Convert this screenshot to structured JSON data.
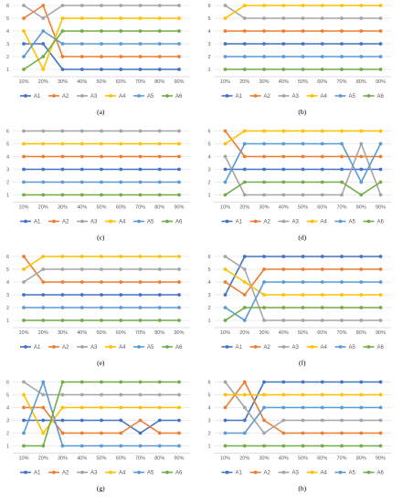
{
  "chart_data": [
    {
      "panel": "(a)",
      "type": "line",
      "x": [
        "10%",
        "20%",
        "30%",
        "40%",
        "50%",
        "60%",
        "70%",
        "80%",
        "90%"
      ],
      "ylim": [
        0,
        6
      ],
      "yticks": [
        "1",
        "2",
        "3",
        "4",
        "5",
        "6"
      ],
      "grid": true,
      "legend": "bottom",
      "series": [
        {
          "name": "A1",
          "color": "#4472C4",
          "values": [
            3,
            3,
            1,
            1,
            1,
            1,
            1,
            1,
            1
          ]
        },
        {
          "name": "A2",
          "color": "#ED7D31",
          "values": [
            5,
            6,
            2,
            2,
            2,
            2,
            2,
            2,
            2
          ]
        },
        {
          "name": "A3",
          "color": "#A5A5A5",
          "values": [
            6,
            5,
            6,
            6,
            6,
            6,
            6,
            6,
            6
          ]
        },
        {
          "name": "A4",
          "color": "#FFC000",
          "values": [
            4,
            1,
            5,
            5,
            5,
            5,
            5,
            5,
            5
          ]
        },
        {
          "name": "A5",
          "color": "#5B9BD5",
          "values": [
            2,
            4,
            3,
            3,
            3,
            3,
            3,
            3,
            3
          ]
        },
        {
          "name": "A6",
          "color": "#70AD47",
          "values": [
            1,
            2,
            4,
            4,
            4,
            4,
            4,
            4,
            4
          ]
        }
      ]
    },
    {
      "panel": "(b)",
      "type": "line",
      "x": [
        "10%",
        "20%",
        "30%",
        "40%",
        "50%",
        "60%",
        "70%",
        "80%",
        "90%"
      ],
      "ylim": [
        0,
        6
      ],
      "yticks": [
        "1",
        "2",
        "3",
        "4",
        "5",
        "6"
      ],
      "grid": true,
      "legend": "bottom",
      "series": [
        {
          "name": "A1",
          "color": "#4472C4",
          "values": [
            3,
            3,
            3,
            3,
            3,
            3,
            3,
            3,
            3
          ]
        },
        {
          "name": "A2",
          "color": "#ED7D31",
          "values": [
            4,
            4,
            4,
            4,
            4,
            4,
            4,
            4,
            4
          ]
        },
        {
          "name": "A3",
          "color": "#A5A5A5",
          "values": [
            6,
            5,
            5,
            5,
            5,
            5,
            5,
            5,
            5
          ]
        },
        {
          "name": "A4",
          "color": "#FFC000",
          "values": [
            5,
            6,
            6,
            6,
            6,
            6,
            6,
            6,
            6
          ]
        },
        {
          "name": "A5",
          "color": "#5B9BD5",
          "values": [
            2,
            2,
            2,
            2,
            2,
            2,
            2,
            2,
            2
          ]
        },
        {
          "name": "A6",
          "color": "#70AD47",
          "values": [
            1,
            1,
            1,
            1,
            1,
            1,
            1,
            1,
            1
          ]
        }
      ]
    },
    {
      "panel": "(c)",
      "type": "line",
      "x": [
        "10%",
        "20%",
        "30%",
        "40%",
        "50%",
        "60%",
        "70%",
        "80%",
        "90%"
      ],
      "ylim": [
        0,
        6
      ],
      "yticks": [
        "1",
        "2",
        "3",
        "4",
        "5",
        "6"
      ],
      "grid": true,
      "legend": "bottom",
      "series": [
        {
          "name": "A1",
          "color": "#4472C4",
          "values": [
            3,
            3,
            3,
            3,
            3,
            3,
            3,
            3,
            3
          ]
        },
        {
          "name": "A2",
          "color": "#ED7D31",
          "values": [
            4,
            4,
            4,
            4,
            4,
            4,
            4,
            4,
            4
          ]
        },
        {
          "name": "A3",
          "color": "#A5A5A5",
          "values": [
            6,
            6,
            6,
            6,
            6,
            6,
            6,
            6,
            6
          ]
        },
        {
          "name": "A4",
          "color": "#FFC000",
          "values": [
            5,
            5,
            5,
            5,
            5,
            5,
            5,
            5,
            5
          ]
        },
        {
          "name": "A5",
          "color": "#5B9BD5",
          "values": [
            2,
            2,
            2,
            2,
            2,
            2,
            2,
            2,
            2
          ]
        },
        {
          "name": "A6",
          "color": "#70AD47",
          "values": [
            1,
            1,
            1,
            1,
            1,
            1,
            1,
            1,
            1
          ]
        }
      ]
    },
    {
      "panel": "(d)",
      "type": "line",
      "x": [
        "10%",
        "20%",
        "30%",
        "40%",
        "50%",
        "60%",
        "70%",
        "80%",
        "90%"
      ],
      "ylim": [
        0,
        6
      ],
      "yticks": [
        "1",
        "2",
        "3",
        "4",
        "5",
        "6"
      ],
      "grid": true,
      "legend": "bottom",
      "series": [
        {
          "name": "A1",
          "color": "#4472C4",
          "values": [
            3,
            3,
            3,
            3,
            3,
            3,
            3,
            3,
            3
          ]
        },
        {
          "name": "A2",
          "color": "#ED7D31",
          "values": [
            6,
            4,
            4,
            4,
            4,
            4,
            4,
            4,
            4
          ]
        },
        {
          "name": "A3",
          "color": "#A5A5A5",
          "values": [
            4,
            1,
            1,
            1,
            1,
            1,
            1,
            5,
            1
          ]
        },
        {
          "name": "A4",
          "color": "#FFC000",
          "values": [
            5,
            6,
            6,
            6,
            6,
            6,
            6,
            6,
            6
          ]
        },
        {
          "name": "A5",
          "color": "#5B9BD5",
          "values": [
            2,
            5,
            5,
            5,
            5,
            5,
            5,
            2,
            5
          ]
        },
        {
          "name": "A6",
          "color": "#70AD47",
          "values": [
            1,
            2,
            2,
            2,
            2,
            2,
            2,
            1,
            2
          ]
        }
      ]
    },
    {
      "panel": "(e)",
      "type": "line",
      "x": [
        "10%",
        "20%",
        "30%",
        "40%",
        "50%",
        "60%",
        "70%",
        "80%",
        "90%"
      ],
      "ylim": [
        0,
        6
      ],
      "yticks": [
        "1",
        "2",
        "3",
        "4",
        "5",
        "6"
      ],
      "grid": true,
      "legend": "bottom",
      "series": [
        {
          "name": "A1",
          "color": "#4472C4",
          "values": [
            3,
            3,
            3,
            3,
            3,
            3,
            3,
            3,
            3
          ]
        },
        {
          "name": "A2",
          "color": "#ED7D31",
          "values": [
            6,
            4,
            4,
            4,
            4,
            4,
            4,
            4,
            4
          ]
        },
        {
          "name": "A3",
          "color": "#A5A5A5",
          "values": [
            4,
            5,
            5,
            5,
            5,
            5,
            5,
            5,
            5
          ]
        },
        {
          "name": "A4",
          "color": "#FFC000",
          "values": [
            5,
            6,
            6,
            6,
            6,
            6,
            6,
            6,
            6
          ]
        },
        {
          "name": "A5",
          "color": "#5B9BD5",
          "values": [
            2,
            2,
            2,
            2,
            2,
            2,
            2,
            2,
            2
          ]
        },
        {
          "name": "A6",
          "color": "#70AD47",
          "values": [
            1,
            1,
            1,
            1,
            1,
            1,
            1,
            1,
            1
          ]
        }
      ]
    },
    {
      "panel": "(f)",
      "type": "line",
      "x": [
        "10%",
        "20%",
        "30%",
        "40%",
        "50%",
        "60%",
        "70%",
        "80%",
        "90%"
      ],
      "ylim": [
        0,
        6
      ],
      "yticks": [
        "1",
        "2",
        "3",
        "4",
        "5",
        "6"
      ],
      "grid": true,
      "legend": "bottom",
      "series": [
        {
          "name": "A1",
          "color": "#4472C4",
          "values": [
            3,
            6,
            6,
            6,
            6,
            6,
            6,
            6,
            6
          ]
        },
        {
          "name": "A2",
          "color": "#ED7D31",
          "values": [
            4,
            3,
            5,
            5,
            5,
            5,
            5,
            5,
            5
          ]
        },
        {
          "name": "A3",
          "color": "#A5A5A5",
          "values": [
            6,
            5,
            1,
            1,
            1,
            1,
            1,
            1,
            1
          ]
        },
        {
          "name": "A4",
          "color": "#FFC000",
          "values": [
            5,
            4,
            3,
            3,
            3,
            3,
            3,
            3,
            3
          ]
        },
        {
          "name": "A5",
          "color": "#5B9BD5",
          "values": [
            2,
            1,
            4,
            4,
            4,
            4,
            4,
            4,
            4
          ]
        },
        {
          "name": "A6",
          "color": "#70AD47",
          "values": [
            1,
            2,
            2,
            2,
            2,
            2,
            2,
            2,
            2
          ]
        }
      ]
    },
    {
      "panel": "(g)",
      "type": "line",
      "x": [
        "10%",
        "20%",
        "30%",
        "40%",
        "50%",
        "60%",
        "70%",
        "80%",
        "90%"
      ],
      "ylim": [
        0,
        6
      ],
      "yticks": [
        "1",
        "2",
        "3",
        "4",
        "5",
        "6"
      ],
      "grid": true,
      "legend": "bottom",
      "series": [
        {
          "name": "A1",
          "color": "#4472C4",
          "values": [
            3,
            3,
            3,
            3,
            3,
            3,
            2,
            3,
            3
          ]
        },
        {
          "name": "A2",
          "color": "#ED7D31",
          "values": [
            4,
            4,
            2,
            2,
            2,
            2,
            3,
            2,
            2
          ]
        },
        {
          "name": "A3",
          "color": "#A5A5A5",
          "values": [
            6,
            5,
            5,
            5,
            5,
            5,
            5,
            5,
            5
          ]
        },
        {
          "name": "A4",
          "color": "#FFC000",
          "values": [
            5,
            2,
            4,
            4,
            4,
            4,
            4,
            4,
            4
          ]
        },
        {
          "name": "A5",
          "color": "#5B9BD5",
          "values": [
            2,
            6,
            1,
            1,
            1,
            1,
            1,
            1,
            1
          ]
        },
        {
          "name": "A6",
          "color": "#70AD47",
          "values": [
            1,
            1,
            6,
            6,
            6,
            6,
            6,
            6,
            6
          ]
        }
      ]
    },
    {
      "panel": "(h)",
      "type": "line",
      "x": [
        "10%",
        "20%",
        "30%",
        "40%",
        "50%",
        "60%",
        "70%",
        "80%",
        "90%"
      ],
      "ylim": [
        0,
        6
      ],
      "yticks": [
        "1",
        "2",
        "3",
        "4",
        "5",
        "6"
      ],
      "grid": true,
      "legend": "bottom",
      "series": [
        {
          "name": "A1",
          "color": "#4472C4",
          "values": [
            3,
            3,
            6,
            6,
            6,
            6,
            6,
            6,
            6
          ]
        },
        {
          "name": "A2",
          "color": "#ED7D31",
          "values": [
            4,
            6,
            3,
            2,
            2,
            2,
            2,
            2,
            2
          ]
        },
        {
          "name": "A3",
          "color": "#A5A5A5",
          "values": [
            6,
            4,
            2,
            3,
            3,
            3,
            3,
            3,
            3
          ]
        },
        {
          "name": "A4",
          "color": "#FFC000",
          "values": [
            5,
            5,
            5,
            5,
            5,
            5,
            5,
            5,
            5
          ]
        },
        {
          "name": "A5",
          "color": "#5B9BD5",
          "values": [
            2,
            2,
            4,
            4,
            4,
            4,
            4,
            4,
            4
          ]
        },
        {
          "name": "A6",
          "color": "#70AD47",
          "values": [
            1,
            1,
            1,
            1,
            1,
            1,
            1,
            1,
            1
          ]
        }
      ]
    }
  ]
}
